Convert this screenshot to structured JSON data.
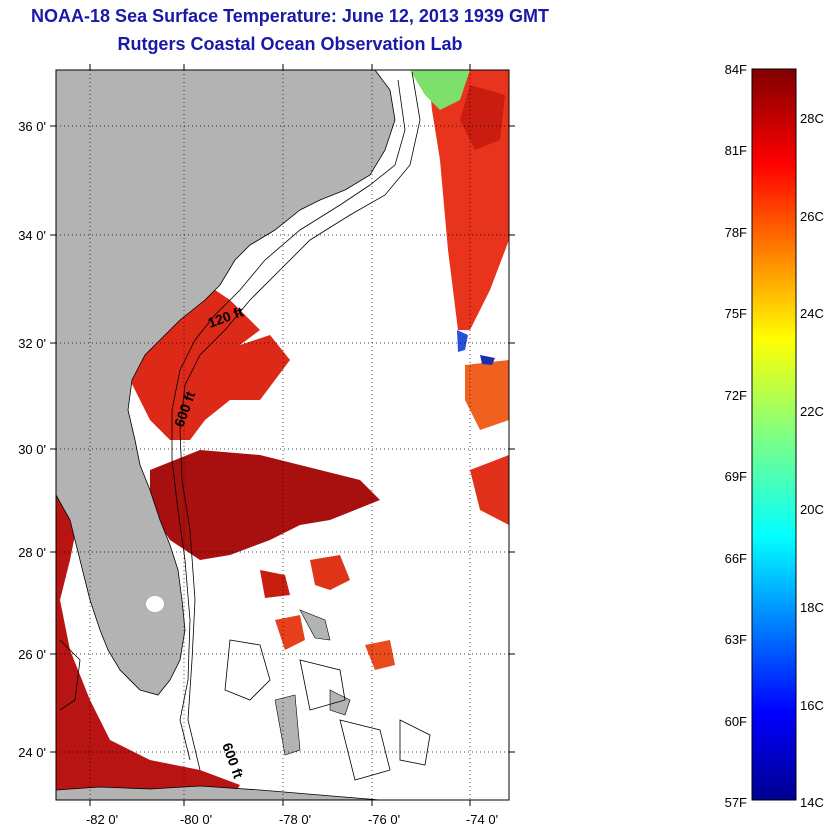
{
  "title_line1": "NOAA-18 Sea Surface Temperature:  June 12, 2013 1939 GMT",
  "title_line2": "Rutgers Coastal Ocean Observation Lab",
  "map": {
    "lon_ticks": [
      "-82 0'",
      "-80 0'",
      "-78 0'",
      "-76 0'",
      "-74 0'"
    ],
    "lat_ticks": [
      "36 0'",
      "34 0'",
      "32 0'",
      "30 0'",
      "28 0'",
      "26 0'",
      "24 0'"
    ],
    "contour_labels": [
      "120 ft",
      "600 ft",
      "600 ft"
    ],
    "colors": {
      "land": "#b3b3b3",
      "ocean_nodata": "#ffffff"
    }
  },
  "colorbar": {
    "fahrenheit_labels": [
      "84F",
      "81F",
      "78F",
      "75F",
      "72F",
      "69F",
      "66F",
      "63F",
      "60F",
      "57F"
    ],
    "celsius_labels": [
      "28C",
      "26C",
      "24C",
      "22C",
      "20C",
      "18C",
      "16C",
      "14C"
    ],
    "colormap": "jet",
    "range_F": [
      57,
      84
    ],
    "range_C": [
      14,
      29
    ]
  }
}
